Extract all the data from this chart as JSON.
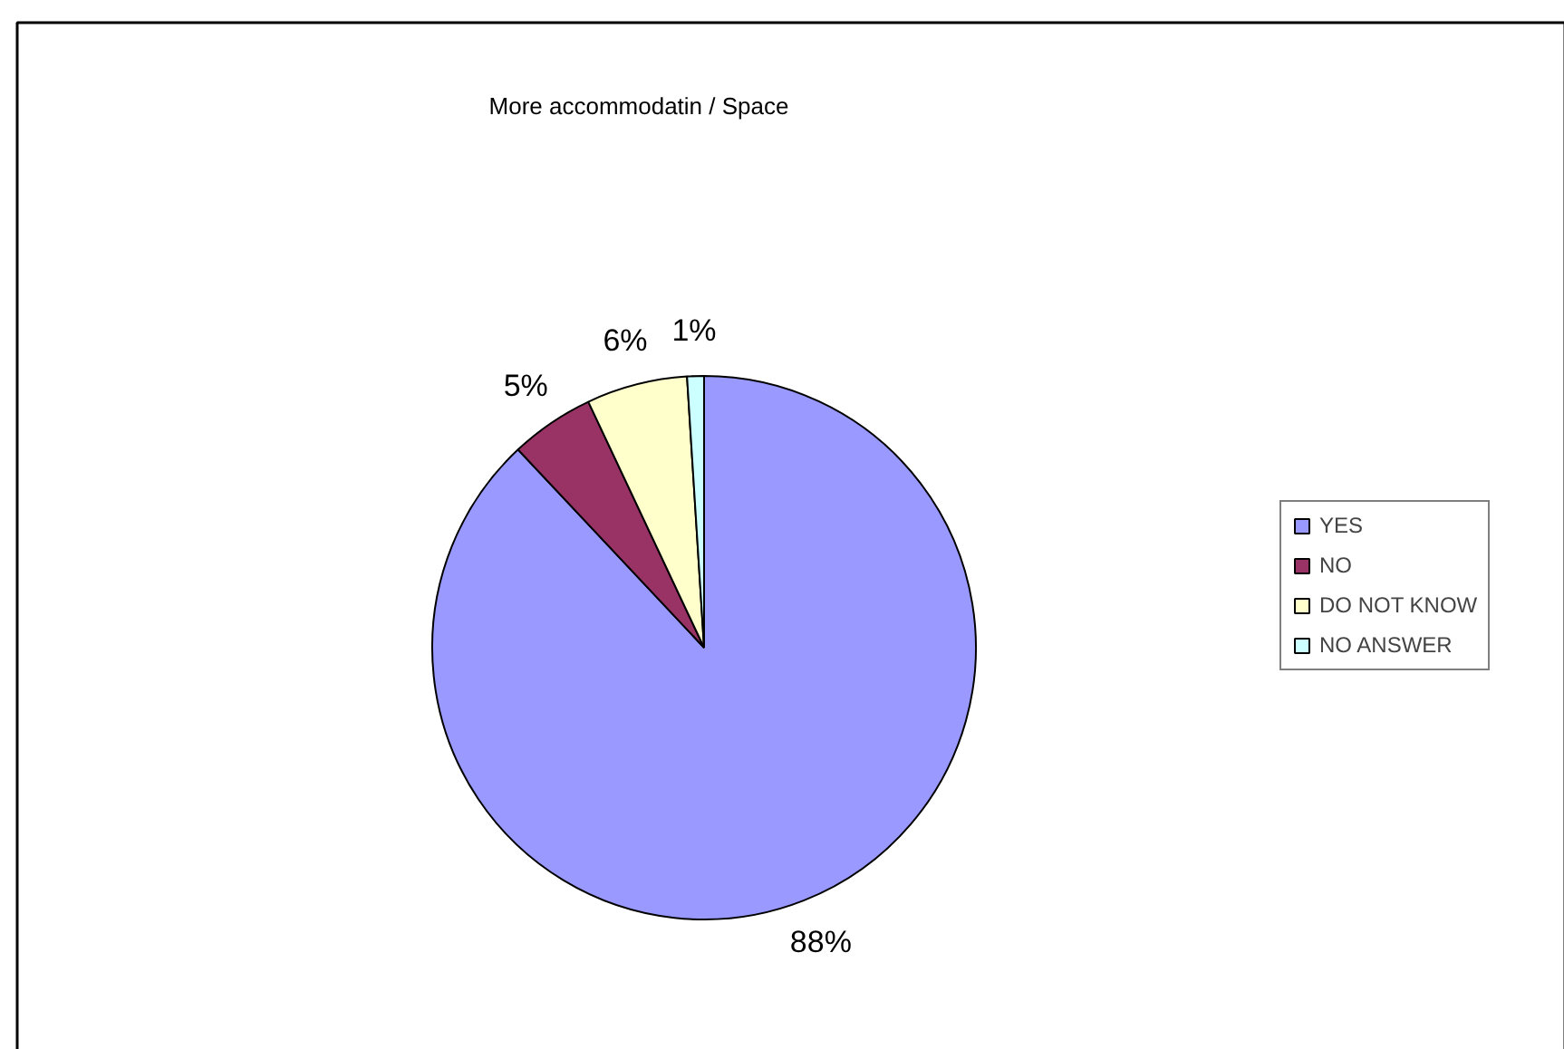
{
  "chart_data": {
    "type": "pie",
    "title": "More accommodatin / Space",
    "categories": [
      "YES",
      "NO",
      "DO NOT KNOW",
      "NO ANSWER"
    ],
    "values": [
      88,
      5,
      6,
      1
    ],
    "colors": [
      "#9999ff",
      "#993366",
      "#ffffcc",
      "#ccffff"
    ],
    "value_labels": [
      "88%",
      "5%",
      "6%",
      "1%"
    ],
    "legend": "right"
  }
}
